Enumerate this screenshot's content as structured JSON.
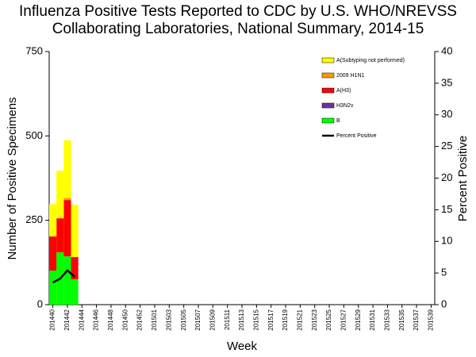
{
  "chart_data": {
    "type": "bar",
    "title": "Influenza Positive Tests Reported to CDC by U.S. WHO/NREVSS Collaborating Laboratories, National Summary, 2014-15",
    "x_label": "Week",
    "y_label": "Number of Positive Specimens",
    "y2_label": "Percent Positive",
    "stacked": true,
    "legend": "upper right",
    "categories": [
      "201440",
      null,
      "201442",
      null,
      "201444",
      null,
      "201446",
      null,
      "201448",
      null,
      "201450",
      null,
      "201452",
      null,
      "201501",
      null,
      "201503",
      null,
      "201505",
      null,
      "201507",
      null,
      "201509",
      null,
      "201511",
      null,
      "201513",
      null,
      "201515",
      null,
      "201517",
      null,
      "201519",
      null,
      "201521",
      null,
      "201523",
      null,
      "201525",
      null,
      "201527",
      null,
      "201529",
      null,
      "201531",
      null,
      "201533",
      null,
      "201535",
      null,
      "201537",
      null,
      "201539"
    ],
    "ylim": [
      0,
      750
    ],
    "yticks": [
      0,
      250,
      500,
      750
    ],
    "y2lim": [
      0,
      40
    ],
    "y2ticks": [
      0,
      5,
      10,
      15,
      20,
      25,
      30,
      35,
      40
    ],
    "series": [
      {
        "name": "A(Subtyping not performed)",
        "color": "#ffff00",
        "values": [
          96,
          141,
          171,
          155,
          null,
          null,
          null,
          null,
          null,
          null,
          null,
          null,
          null,
          null,
          null,
          null,
          null,
          null,
          null,
          null,
          null,
          null,
          null,
          null,
          null,
          null,
          null,
          null,
          null,
          null,
          null,
          null,
          null,
          null,
          null,
          null,
          null,
          null,
          null,
          null,
          null,
          null,
          null,
          null,
          null,
          null,
          null,
          null,
          null,
          null,
          null,
          null,
          null
        ]
      },
      {
        "name": "2009 H1N1",
        "color": "#ff9900",
        "values": [
          0,
          0,
          6,
          0,
          null,
          null,
          null,
          null,
          null,
          null,
          null,
          null,
          null,
          null,
          null,
          null,
          null,
          null,
          null,
          null,
          null,
          null,
          null,
          null,
          null,
          null,
          null,
          null,
          null,
          null,
          null,
          null,
          null,
          null,
          null,
          null,
          null,
          null,
          null,
          null,
          null,
          null,
          null,
          null,
          null,
          null,
          null,
          null,
          null,
          null,
          null,
          null,
          null
        ]
      },
      {
        "name": "A(H3)",
        "color": "#ff0000",
        "values": [
          101,
          101,
          167,
          66,
          null,
          null,
          null,
          null,
          null,
          null,
          null,
          null,
          null,
          null,
          null,
          null,
          null,
          null,
          null,
          null,
          null,
          null,
          null,
          null,
          null,
          null,
          null,
          null,
          null,
          null,
          null,
          null,
          null,
          null,
          null,
          null,
          null,
          null,
          null,
          null,
          null,
          null,
          null,
          null,
          null,
          null,
          null,
          null,
          null,
          null,
          null,
          null,
          null
        ]
      },
      {
        "name": "H3N2v",
        "color": "#7030a0",
        "values": [
          0,
          0,
          0,
          0,
          null,
          null,
          null,
          null,
          null,
          null,
          null,
          null,
          null,
          null,
          null,
          null,
          null,
          null,
          null,
          null,
          null,
          null,
          null,
          null,
          null,
          null,
          null,
          null,
          null,
          null,
          null,
          null,
          null,
          null,
          null,
          null,
          null,
          null,
          null,
          null,
          null,
          null,
          null,
          null,
          null,
          null,
          null,
          null,
          null,
          null,
          null,
          null,
          null
        ]
      },
      {
        "name": "B",
        "color": "#00ff00",
        "values": [
          101,
          155,
          143,
          75,
          null,
          null,
          null,
          null,
          null,
          null,
          null,
          null,
          null,
          null,
          null,
          null,
          null,
          null,
          null,
          null,
          null,
          null,
          null,
          null,
          null,
          null,
          null,
          null,
          null,
          null,
          null,
          null,
          null,
          null,
          null,
          null,
          null,
          null,
          null,
          null,
          null,
          null,
          null,
          null,
          null,
          null,
          null,
          null,
          null,
          null,
          null,
          null,
          null
        ]
      },
      {
        "name": "Percent Positive",
        "color": "#000000",
        "type": "line",
        "axis": "y2",
        "values": [
          3.5,
          4.1,
          5.4,
          4.4,
          null,
          null,
          null,
          null,
          null,
          null,
          null,
          null,
          null,
          null,
          null,
          null,
          null,
          null,
          null,
          null,
          null,
          null,
          null,
          null,
          null,
          null,
          null,
          null,
          null,
          null,
          null,
          null,
          null,
          null,
          null,
          null,
          null,
          null,
          null,
          null,
          null,
          null,
          null,
          null,
          null,
          null,
          null,
          null,
          null,
          null,
          null,
          null,
          null
        ]
      }
    ]
  }
}
